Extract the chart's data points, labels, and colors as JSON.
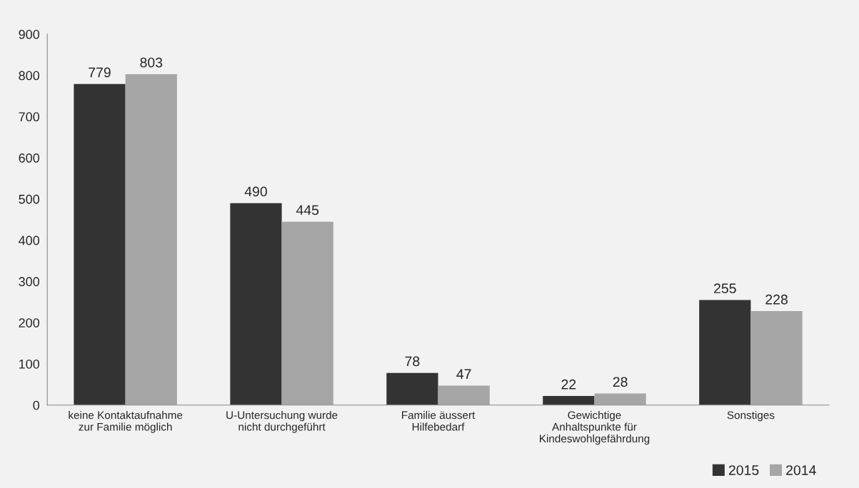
{
  "chart_data": {
    "type": "bar",
    "categories": [
      "keine Kontaktaufnahme\nzur Familie möglich",
      "U-Untersuchung wurde\nnicht durchgeführt",
      "Familie äussert\nHilfebedarf",
      "Gewichtige\nAnhaltspunkte für\nKindeswohlgefährdung",
      "Sonstiges"
    ],
    "series": [
      {
        "name": "2015",
        "color": "#333333",
        "values": [
          779,
          490,
          78,
          22,
          255
        ]
      },
      {
        "name": "2014",
        "color": "#a6a6a6",
        "values": [
          803,
          445,
          47,
          28,
          228
        ]
      }
    ],
    "ylim": [
      0,
      900
    ],
    "yticks": [
      0,
      100,
      200,
      300,
      400,
      500,
      600,
      700,
      800,
      900
    ],
    "grid": false,
    "legend": "bottom right",
    "data_labels": true
  }
}
